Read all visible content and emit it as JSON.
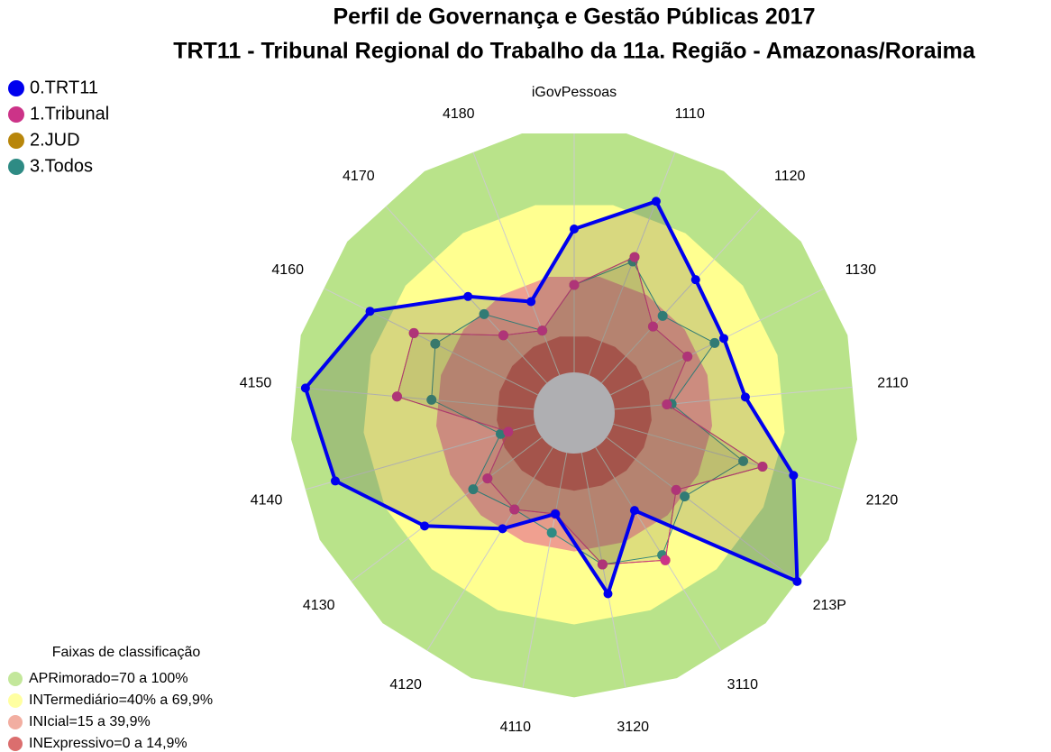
{
  "chart_data": {
    "type": "radar",
    "title": "Perfil de Governança e Gestão Públicas 2017",
    "subtitle": "TRT11 - Tribunal Regional do Trabalho da 11a. Região - Amazonas/Roraima",
    "categories": [
      "iGovPessoas",
      "1110",
      "1120",
      "1130",
      "2110",
      "2120",
      "213P",
      "3110",
      "3120",
      "4110",
      "4120",
      "4130",
      "4140",
      "4150",
      "4160",
      "4170",
      "4180"
    ],
    "ylim": [
      0,
      100
    ],
    "series": [
      {
        "name": "0.TRT11",
        "color": "#0000ee",
        "values": [
          60,
          78,
          58.5,
          53,
          55,
          78.5,
          100,
          31,
          60,
          26,
          40,
          61.5,
          87,
          96,
          78.5,
          49,
          33
        ]
      },
      {
        "name": "1.Tribunal",
        "color": "#cc3388",
        "values": [
          36.6,
          53,
          32,
          36,
          22,
          65,
          36.5,
          55.5,
          47.5,
          26,
          30.5,
          28.5,
          11.7,
          57.5,
          58,
          27,
          20
        ]
      },
      {
        "name": "2.JUD",
        "color": "#b8860b",
        "values": [
          36.6,
          53,
          32,
          36,
          22,
          65,
          36.5,
          55.5,
          47.5,
          26,
          30.5,
          28.5,
          11.7,
          57.5,
          58,
          27,
          20
        ]
      },
      {
        "name": "3.Todos",
        "color": "#2e8b84",
        "values": [
          36.6,
          51,
          38,
          48.7,
          24,
          56.6,
          41,
          53,
          47.5,
          34,
          30.5,
          36,
          15,
          43,
          48,
          39,
          20
        ]
      }
    ],
    "bands_title": "Faixas de classificação",
    "bands": [
      {
        "label": "APRimorado=70 a 100%",
        "from": 70,
        "to": 100,
        "color": "#b9e38a"
      },
      {
        "label": "INTermediário=40% a 69,9%",
        "from": 40,
        "to": 70,
        "color": "#ffff90"
      },
      {
        "label": "INIcial=15 a 39,9%",
        "from": 15,
        "to": 40,
        "color": "#f0a090"
      },
      {
        "label": "INExpressivo=0 a 14,9%",
        "from": 0,
        "to": 15,
        "color": "#d55555"
      }
    ]
  }
}
